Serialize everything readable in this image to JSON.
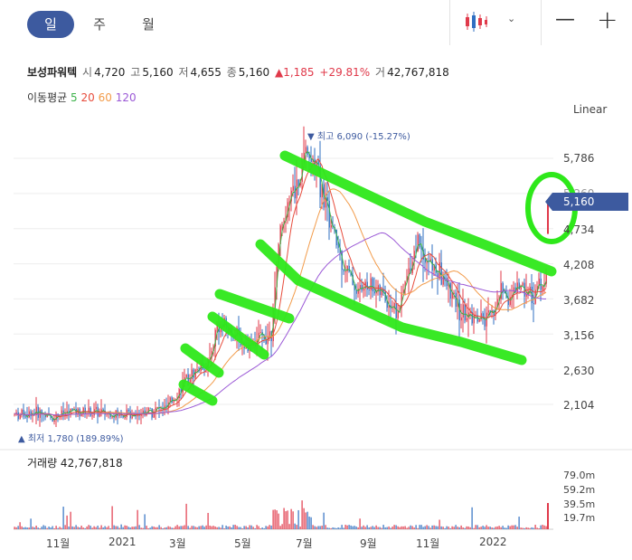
{
  "toolbar": {
    "tabs": [
      "일",
      "주",
      "월"
    ],
    "active_tab": "일",
    "chart_type_icon": "candlestick-icon",
    "dropdown_icon": "chevron-down-icon",
    "minus_label": "—",
    "plus_label": "+"
  },
  "stock": {
    "name": "보성파워텍",
    "open_label": "시",
    "open": "4,720",
    "high_label": "고",
    "high": "5,160",
    "low_label": "저",
    "low": "4,655",
    "close_label": "종",
    "close": "5,160",
    "change": "▲1,185",
    "change_pct": "+29.81%",
    "volume_label": "거",
    "volume": "42,767,818"
  },
  "ma": {
    "label": "이동평균",
    "periods": [
      "5",
      "20",
      "60",
      "120"
    ],
    "colors": [
      "#3cb24a",
      "#e74c3c",
      "#f29b4a",
      "#9b59d6"
    ]
  },
  "scale_label": "Linear",
  "current_price": "5,160",
  "extremes": {
    "high_text": "▼ 최고 6,090 (-15.27%)",
    "low_text": "▲ 최저 1,780 (189.89%)"
  },
  "volume_panel": {
    "title": "거래량 42,767,818",
    "ticks": [
      "79.0m",
      "59.2m",
      "39.5m",
      "19.7m"
    ]
  },
  "colors": {
    "up": "#e0394a",
    "down": "#2f6fc2",
    "annotation": "#2ee81a",
    "accent": "#3d5a9f"
  },
  "chart_data": {
    "type": "candlestick",
    "y_ticks": [
      "5,786",
      "5,260",
      "4,734",
      "4,208",
      "3,682",
      "3,156",
      "2,630",
      "2,104"
    ],
    "ylim": [
      1700,
      6200
    ],
    "x_ticks": [
      "11월",
      "2021",
      "3월",
      "5월",
      "7월",
      "9월",
      "11월",
      "2022"
    ],
    "series": [
      {
        "name": "5",
        "type": "moving-average"
      },
      {
        "name": "20",
        "type": "moving-average"
      },
      {
        "name": "60",
        "type": "moving-average"
      },
      {
        "name": "120",
        "type": "moving-average"
      }
    ],
    "last_close": 5160,
    "period_high": 6090,
    "period_low": 1780,
    "volume_ticks_m": [
      79.0,
      59.2,
      39.5,
      19.7
    ],
    "last_volume": 42767818
  }
}
